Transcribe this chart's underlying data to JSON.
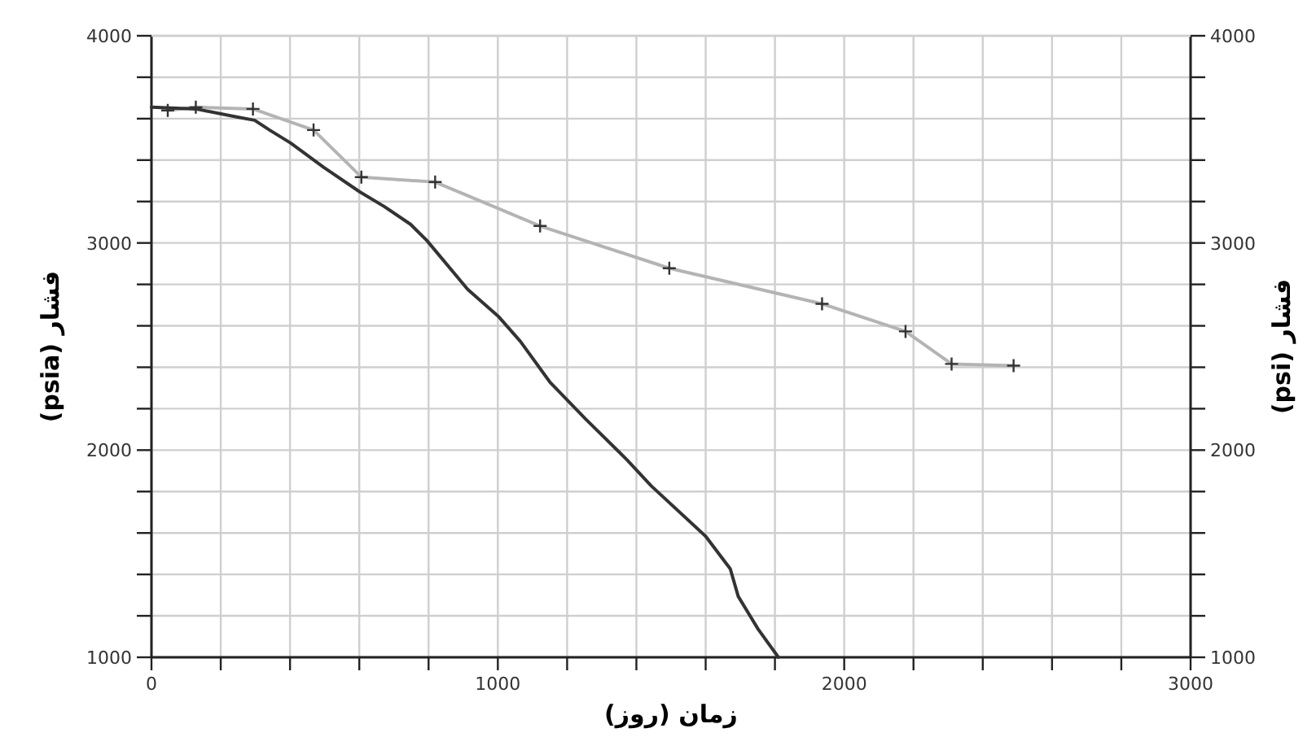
{
  "chart_data": {
    "type": "line",
    "xlabel": "زمان (روز)",
    "ylabel": "فشار (psia)",
    "y2label": "فشار (psi)",
    "xlim": [
      0,
      3000
    ],
    "xticks": [
      0,
      {
        "value": 200,
        "label": null
      },
      {
        "value": 400,
        "label": null
      },
      {
        "value": 600,
        "label": null
      },
      {
        "value": 800,
        "label": null
      },
      1000,
      {
        "value": 1200,
        "label": null
      },
      {
        "value": 1400,
        "label": null
      },
      {
        "value": 1600,
        "label": null
      },
      {
        "value": 1800,
        "label": null
      },
      2000,
      {
        "value": 2200,
        "label": null
      },
      {
        "value": 2400,
        "label": null
      },
      {
        "value": 2600,
        "label": null
      },
      {
        "value": 2800,
        "label": null
      },
      3000
    ],
    "ylim": [
      1000,
      4000
    ],
    "yticks": [
      1000,
      {
        "value": 1200,
        "label": null
      },
      {
        "value": 1400,
        "label": null
      },
      {
        "value": 1600,
        "label": null
      },
      {
        "value": 1800,
        "label": null
      },
      2000,
      {
        "value": 2200,
        "label": null
      },
      {
        "value": 2400,
        "label": null
      },
      {
        "value": 2600,
        "label": null
      },
      {
        "value": 2800,
        "label": null
      },
      3000,
      {
        "value": 3200,
        "label": null
      },
      {
        "value": 3400,
        "label": null
      },
      {
        "value": 3600,
        "label": null
      },
      {
        "value": 3800,
        "label": null
      },
      4000
    ],
    "y2lim": [
      1000,
      4000
    ],
    "y2ticks": [
      1000,
      {
        "value": 1200,
        "label": null
      },
      {
        "value": 1400,
        "label": null
      },
      {
        "value": 1600,
        "label": null
      },
      {
        "value": 1800,
        "label": null
      },
      2000,
      {
        "value": 2200,
        "label": null
      },
      {
        "value": 2400,
        "label": null
      },
      {
        "value": 2600,
        "label": null
      },
      {
        "value": 2800,
        "label": null
      },
      3000,
      {
        "value": 3200,
        "label": null
      },
      {
        "value": 3400,
        "label": null
      },
      {
        "value": 3600,
        "label": null
      },
      {
        "value": 3800,
        "label": null
      },
      4000
    ],
    "grid": true,
    "series": [
      {
        "color": "#b4b4b4",
        "marker": "cross",
        "x": [
          47,
          128,
          293,
          468,
          606,
          819,
          1122,
          1495,
          1936,
          2177,
          2310,
          2489
        ],
        "values": [
          3640,
          3655,
          3647,
          3545,
          3318,
          3294,
          3082,
          2878,
          2706,
          2573,
          2416,
          2408
        ]
      },
      {
        "color": "#333333",
        "marker": "none",
        "x": [
          0,
          128,
          246,
          298,
          341,
          402,
          497,
          601,
          672,
          748,
          795,
          913,
          1003,
          1065,
          1150,
          1254,
          1373,
          1443,
          1600,
          1671,
          1694,
          1751,
          1810
        ],
        "values": [
          3655,
          3647,
          3608,
          3592,
          3545,
          3482,
          3365,
          3247,
          3176,
          3090,
          3012,
          2776,
          2643,
          2525,
          2329,
          2149,
          1953,
          1827,
          1584,
          1427,
          1294,
          1137,
          1000
        ]
      }
    ]
  }
}
